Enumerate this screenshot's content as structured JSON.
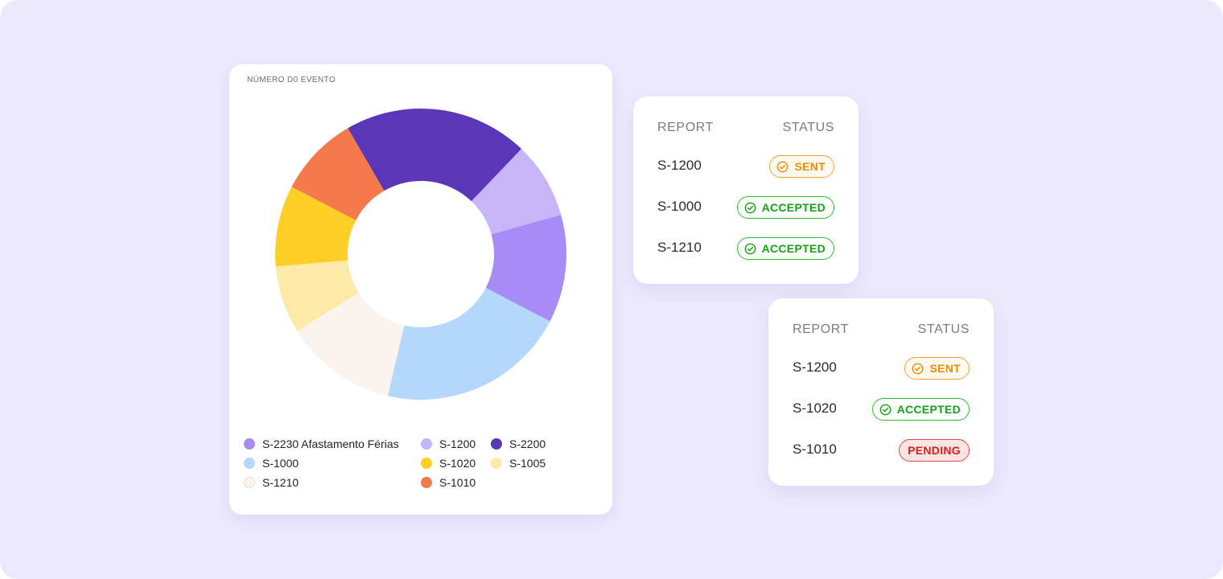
{
  "chart_data": {
    "type": "pie",
    "style": "donut",
    "title": "NÚMERO D0 EVENTO",
    "categories": [
      "S-2200",
      "S-1200",
      "S-2230 Afastamento Férias",
      "S-1000",
      "S-1210",
      "S-1005",
      "S-1020",
      "S-1010"
    ],
    "values": [
      20.5,
      8.5,
      12,
      21,
      12.5,
      7.5,
      9,
      9
    ],
    "colors": [
      "#5a37b9",
      "#c7b5f8",
      "#a88cf5",
      "#b4d7fb",
      "#fbf4ee",
      "#fde9a8",
      "#fdcf26",
      "#f47a4b"
    ],
    "legend": [
      {
        "label": "S-2230 Afastamento Férias",
        "color": "#a88cf5"
      },
      {
        "label": "S-1200",
        "color": "#c7b5f8"
      },
      {
        "label": "S-2200",
        "color": "#5a37b9"
      },
      {
        "label": "S-1000",
        "color": "#b4d7fb"
      },
      {
        "label": "S-1020",
        "color": "#fdcf26"
      },
      {
        "label": "S-1005",
        "color": "#fde9a8"
      },
      {
        "label": "S-1210",
        "color": "#fbf4ee"
      },
      {
        "label": "S-1010",
        "color": "#f47a4b"
      }
    ]
  },
  "cards": [
    {
      "header_report": "REPORT",
      "header_status": "STATUS",
      "rows": [
        {
          "report": "S-1200",
          "status": "SENT"
        },
        {
          "report": "S-1000",
          "status": "ACCEPTED"
        },
        {
          "report": "S-1210",
          "status": "ACCEPTED"
        }
      ]
    },
    {
      "header_report": "REPORT",
      "header_status": "STATUS",
      "rows": [
        {
          "report": "S-1200",
          "status": "SENT"
        },
        {
          "report": "S-1020",
          "status": "ACCEPTED"
        },
        {
          "report": "S-1010",
          "status": "PENDING"
        }
      ]
    }
  ],
  "colors": {
    "background": "#ece9fe",
    "sent": "#f08a00",
    "accepted": "#13a312",
    "pending": "#d8201a"
  },
  "icons": {
    "status_check": "check-circle-icon"
  }
}
